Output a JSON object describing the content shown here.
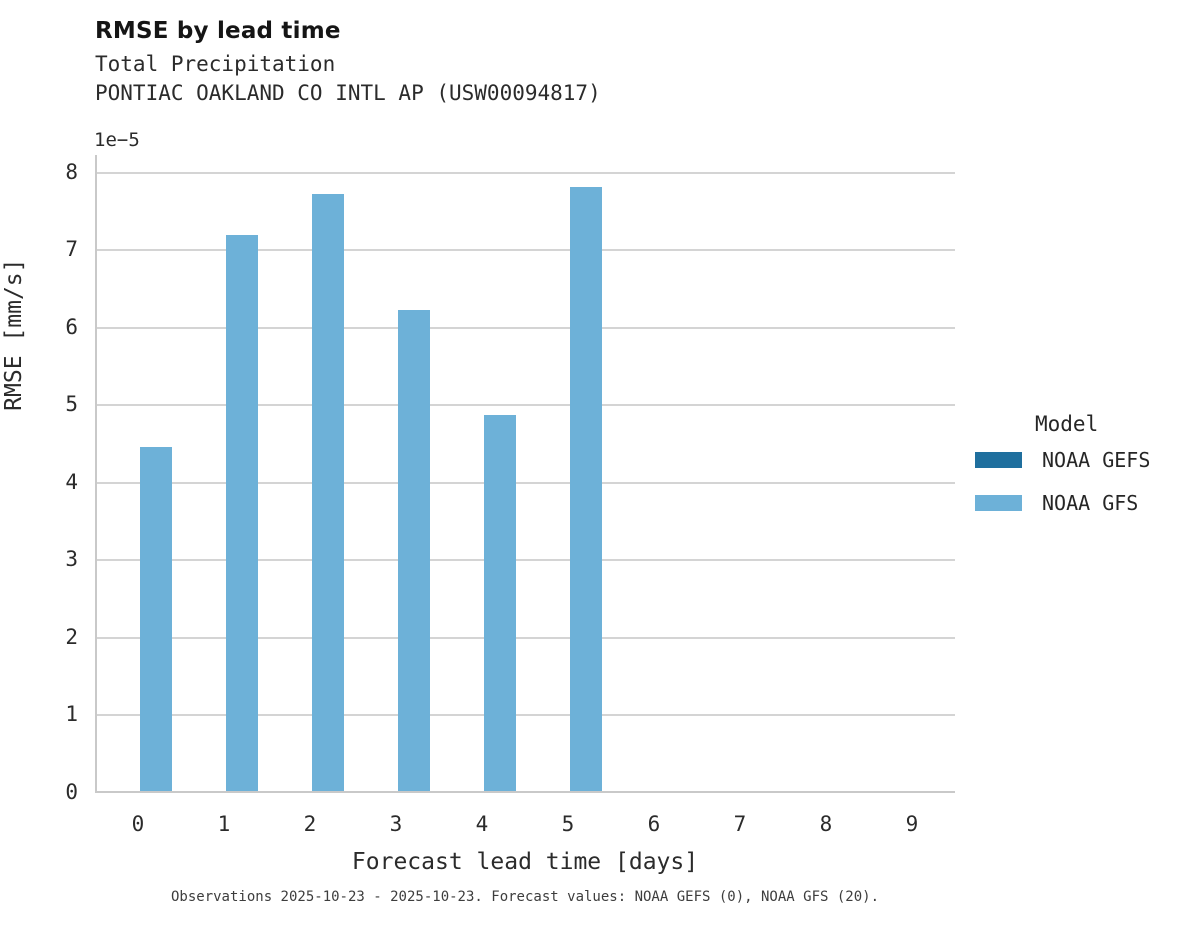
{
  "header": {
    "title": "RMSE by lead time",
    "subtitle_line1": "Total Precipitation",
    "subtitle_line2": "PONTIAC OAKLAND CO INTL AP (USW00094817)"
  },
  "chart_data": {
    "type": "bar",
    "title": "RMSE by lead time",
    "subtitle": [
      "Total Precipitation",
      "PONTIAC OAKLAND CO INTL AP (USW00094817)"
    ],
    "categories": [
      "0",
      "1",
      "2",
      "3",
      "4",
      "5",
      "6",
      "7",
      "8",
      "9"
    ],
    "series": [
      {
        "name": "NOAA GEFS",
        "color": "#1f6f9e",
        "values": [
          null,
          null,
          null,
          null,
          null,
          null,
          null,
          null,
          null,
          null
        ]
      },
      {
        "name": "NOAA GFS",
        "color": "#6db1d8",
        "values": [
          4.44e-05,
          7.17e-05,
          7.7e-05,
          6.2e-05,
          4.85e-05,
          7.79e-05,
          null,
          null,
          null,
          null
        ]
      }
    ],
    "xlabel": "Forecast lead time [days]",
    "ylabel": "RMSE [mm/s]",
    "ylim": [
      0,
      8e-05
    ],
    "yticks_display": [
      "0",
      "1",
      "2",
      "3",
      "4",
      "5",
      "6",
      "7",
      "8"
    ],
    "y_scale": 1e-05,
    "y_offset_label": "1e−5",
    "grid": "horizontal",
    "legend_position": "right"
  },
  "legend": {
    "title": "Model",
    "items": [
      {
        "label": "NOAA GEFS",
        "color": "#1f6f9e"
      },
      {
        "label": "NOAA GFS",
        "color": "#6db1d8"
      }
    ]
  },
  "caption": "Observations 2025-10-23 - 2025-10-23. Forecast values: NOAA GEFS (0), NOAA GFS (20)."
}
